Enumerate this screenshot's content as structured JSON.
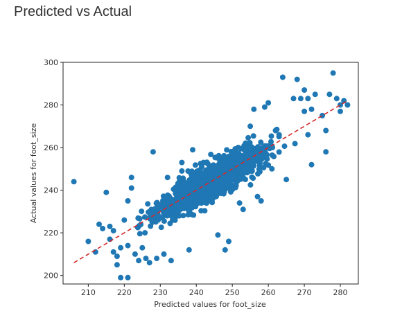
{
  "page": {
    "title": "Predicted vs Actual"
  },
  "chart_data": {
    "type": "scatter",
    "title": "",
    "xlabel": "Predicted values for foot_size",
    "ylabel": "Actual values for foot_size",
    "xlim": [
      203,
      285
    ],
    "ylim": [
      196,
      300
    ],
    "xticks": [
      210,
      220,
      230,
      240,
      250,
      260,
      270,
      280
    ],
    "yticks": [
      200,
      220,
      240,
      260,
      280,
      300
    ],
    "grid": false,
    "colors": {
      "points": "#1f77b4",
      "reference_line": "#d62728"
    },
    "reference_line": {
      "style": "dashed",
      "from": [
        206,
        206
      ],
      "to": [
        282,
        282
      ]
    },
    "series": [
      {
        "points": [
          [
            206,
            244
          ],
          [
            210,
            216
          ],
          [
            212,
            211
          ],
          [
            213,
            224
          ],
          [
            214,
            222
          ],
          [
            215,
            239
          ],
          [
            216,
            217
          ],
          [
            216,
            223
          ],
          [
            217,
            211
          ],
          [
            217,
            221
          ],
          [
            218,
            205
          ],
          [
            218,
            209
          ],
          [
            219,
            199
          ],
          [
            219,
            213
          ],
          [
            220,
            226
          ],
          [
            221,
            199
          ],
          [
            221,
            214
          ],
          [
            221,
            235
          ],
          [
            222,
            241
          ],
          [
            222,
            246
          ],
          [
            223,
            210
          ],
          [
            224,
            207
          ],
          [
            225,
            213
          ],
          [
            226,
            208
          ],
          [
            227,
            206
          ],
          [
            228,
            258
          ],
          [
            229,
            208
          ],
          [
            231,
            210
          ],
          [
            232,
            246
          ],
          [
            233,
            207
          ],
          [
            236,
            249
          ],
          [
            236,
            253
          ],
          [
            238,
            212
          ],
          [
            239,
            259
          ],
          [
            242,
            253
          ],
          [
            246,
            219
          ],
          [
            248,
            212
          ],
          [
            249,
            216
          ],
          [
            252,
            234
          ],
          [
            253,
            231
          ],
          [
            255,
            270
          ],
          [
            256,
            278
          ],
          [
            257,
            237
          ],
          [
            258,
            235
          ],
          [
            259,
            279
          ],
          [
            260,
            281
          ],
          [
            261,
            250
          ],
          [
            262,
            268
          ],
          [
            263,
            266
          ],
          [
            264,
            293
          ],
          [
            265,
            245
          ],
          [
            267,
            283
          ],
          [
            268,
            292
          ],
          [
            269,
            283
          ],
          [
            270,
            287
          ],
          [
            270,
            277
          ],
          [
            271,
            266
          ],
          [
            271,
            283
          ],
          [
            272,
            278
          ],
          [
            272,
            252
          ],
          [
            273,
            285
          ],
          [
            275,
            275
          ],
          [
            276,
            258
          ],
          [
            276,
            268
          ],
          [
            277,
            285
          ],
          [
            278,
            295
          ],
          [
            279,
            283
          ],
          [
            280,
            277
          ],
          [
            280,
            280
          ],
          [
            281,
            282
          ],
          [
            282,
            280
          ]
        ]
      }
    ]
  }
}
